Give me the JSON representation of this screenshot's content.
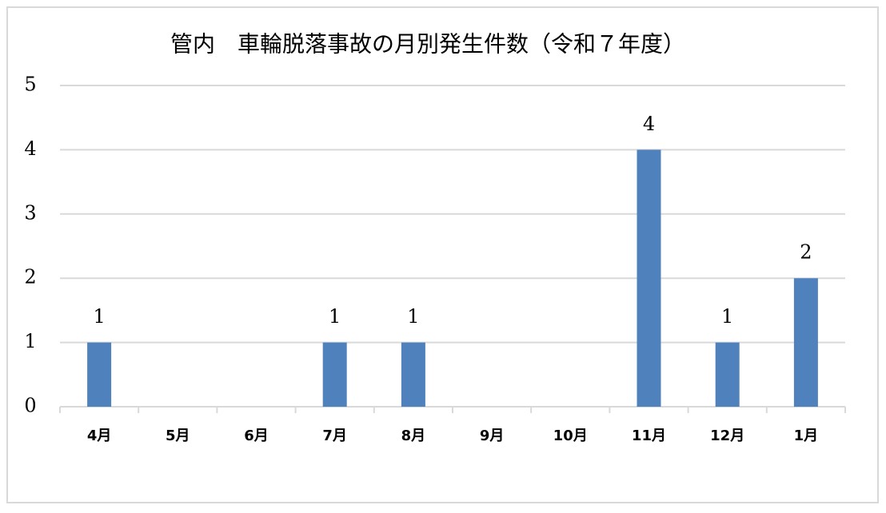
{
  "chart_data": {
    "type": "bar",
    "title": "管内　車輪脱落事故の月別発生件数（令和７年度）",
    "categories": [
      "4月",
      "5月",
      "6月",
      "7月",
      "8月",
      "9月",
      "10月",
      "11月",
      "12月",
      "1月"
    ],
    "values": [
      1,
      0,
      0,
      1,
      1,
      0,
      0,
      4,
      1,
      2
    ],
    "color": "#4f81bd",
    "ylim": [
      0,
      5
    ],
    "yticks": [
      0,
      1,
      2,
      3,
      4,
      5
    ],
    "grid": true,
    "data_labels": true
  }
}
